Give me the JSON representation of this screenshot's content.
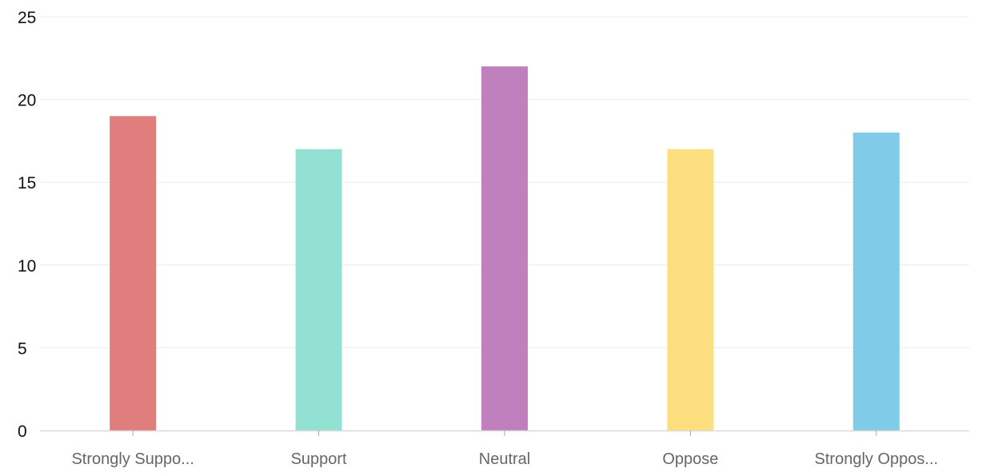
{
  "chart_data": {
    "type": "bar",
    "title": "",
    "xlabel": "",
    "ylabel": "",
    "categories": [
      "Strongly Suppo...",
      "Support",
      "Neutral",
      "Oppose",
      "Strongly Oppos..."
    ],
    "values": [
      19,
      17,
      22,
      17,
      18
    ],
    "colors": [
      "#e07e7e",
      "#93e1d3",
      "#bf80bd",
      "#fddf80",
      "#80cbe8"
    ],
    "ylim": [
      0,
      25
    ],
    "yticks": [
      0,
      5,
      10,
      15,
      20,
      25
    ],
    "grid": true,
    "legend": "none"
  }
}
